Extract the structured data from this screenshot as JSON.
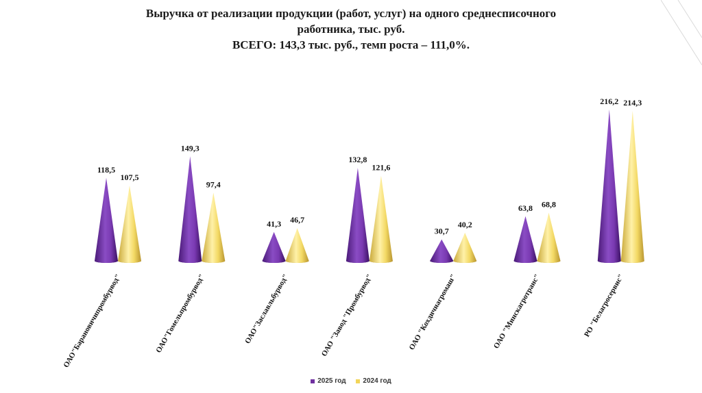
{
  "header": {
    "title_line1": "Выручка от реализации продукции (работ, услуг) на одного среднесписочного",
    "title_line2": "работника, тыс. руб.",
    "title_line3": "ВСЕГО: 143,3 тыс. руб., темп роста – 111,0%."
  },
  "colors": {
    "series_2025": "#7030a0",
    "series_2024": "#f2d55a"
  },
  "chart_data": {
    "type": "bar",
    "title": "Выручка от реализации продукции (работ, услуг) на одного среднесписочного работника, тыс. руб.",
    "subtitle": "ВСЕГО: 143,3 тыс. руб., темп роста – 111,0%.",
    "xlabel": "",
    "ylabel": "",
    "ylim": [
      0,
      220
    ],
    "grid": false,
    "legend_position": "bottom",
    "categories": [
      "ОАО\"Барановичипромбурвод\"",
      "ОАО\"Гомельпромбурвод\"",
      "ОАО\"Заславльбурвод\"",
      "ОАО \"Завод \"Промбурвод\"",
      "ОАО \"Кохдичиагромаш\"",
      "ОАО \"Минскагротранс\"",
      "РО \"Белагросервис\""
    ],
    "series": [
      {
        "name": "2025 год",
        "values": [
          118.5,
          149.3,
          41.3,
          132.8,
          30.7,
          63.8,
          216.2
        ],
        "labels": [
          "118,5",
          "149,3",
          "41,3",
          "132,8",
          "30,7",
          "63,8",
          "216,2"
        ]
      },
      {
        "name": "2024 год",
        "values": [
          107.5,
          97.4,
          46.7,
          121.6,
          40.2,
          68.8,
          214.3
        ],
        "labels": [
          "107,5",
          "97,4",
          "46,7",
          "121,6",
          "40,2",
          "68,8",
          "214,3"
        ]
      }
    ]
  }
}
